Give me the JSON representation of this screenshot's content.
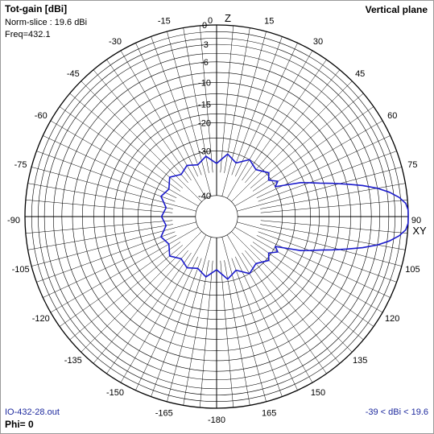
{
  "header": {
    "title": "Tot-gain [dBi]",
    "norm_slice": "Norm-slice : 19.6 dBi",
    "freq": "Freq=432.1",
    "plane": "Vertical plane"
  },
  "footer": {
    "file": "IO-432-28.out",
    "phi": "Phi= 0",
    "range": "-39 < dBi < 19.6"
  },
  "colors": {
    "trace": "#1a1acc",
    "grid": "#000000",
    "footer_text": "#1e2a9e"
  },
  "chart_data": {
    "type": "polar",
    "title": "Tot-gain [dBi]",
    "plane": "Vertical plane",
    "normalization_dBi": 19.6,
    "range_dBi": [
      -39,
      19.6
    ],
    "axis_labels": {
      "top": "Z",
      "right": "XY"
    },
    "angle_tick_step_deg": 15,
    "angle_labels": [
      "0",
      "15",
      "30",
      "45",
      "60",
      "75",
      "90",
      "105",
      "120",
      "135",
      "150",
      "165",
      "-180",
      "-165",
      "-150",
      "-135",
      "-120",
      "-105",
      "-90",
      "-75",
      "-60",
      "-45",
      "-30",
      "-15"
    ],
    "radial_labels": [
      "0",
      "-3",
      "-6",
      "-10",
      "-15",
      "-20",
      "-30",
      "-40"
    ],
    "radial_rings_dB": [
      0,
      -1,
      -2,
      -3,
      -4.5,
      -6,
      -8,
      -10,
      -12.5,
      -15,
      -17.5,
      -20,
      -25,
      -30,
      -40
    ],
    "series": [
      {
        "angles_deg": [
          0,
          10,
          20,
          30,
          40,
          50,
          55,
          60,
          63,
          66,
          68,
          70,
          72,
          74,
          76,
          78,
          80,
          82,
          84,
          86,
          88,
          90,
          92,
          94,
          96,
          98,
          100,
          102,
          104,
          106,
          108,
          110,
          112,
          114,
          117,
          120,
          125,
          130,
          140,
          150,
          160,
          170,
          180,
          190,
          200,
          210,
          220,
          230,
          240,
          250,
          260,
          270,
          280,
          290,
          300,
          310,
          320,
          330,
          340,
          350,
          360
        ],
        "gain_dB": [
          -36,
          -31,
          -34,
          -30,
          -32,
          -29,
          -31,
          -28,
          -30,
          -25,
          -21,
          -18.5,
          -16,
          -13,
          -10,
          -7,
          -4.5,
          -2.6,
          -1.2,
          -0.3,
          0,
          0,
          0,
          -0.3,
          -1.2,
          -2.6,
          -4.5,
          -7,
          -10,
          -13,
          -16,
          -18.5,
          -21,
          -25,
          -30,
          -28,
          -31,
          -29,
          -32,
          -30,
          -34,
          -31,
          -36,
          -32,
          -35,
          -33,
          -35,
          -32,
          -35,
          -33,
          -37,
          -35,
          -37,
          -33,
          -35,
          -32,
          -35,
          -33,
          -35,
          -32,
          -36
        ]
      }
    ]
  }
}
